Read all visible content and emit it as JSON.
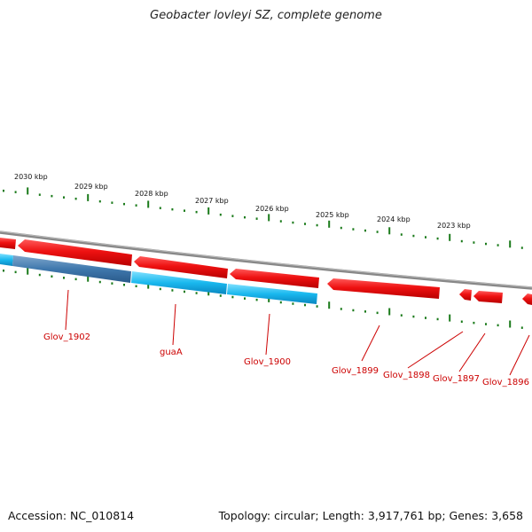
{
  "title": "Geobacter lovleyi SZ, complete genome",
  "footer": {
    "accession": "Accession: NC_010814",
    "summary": "Topology: circular; Length: 3,917,761 bp; Genes: 3,658"
  },
  "ruler": {
    "labels": [
      "2030 kbp",
      "2029 kbp",
      "2028 kbp",
      "2027 kbp",
      "2026 kbp",
      "2025 kbp",
      "2024 kbp",
      "2023 kbp"
    ]
  },
  "genes": [
    {
      "name": "Glov_1902",
      "strand": "minus"
    },
    {
      "name": "guaA",
      "strand": "minus"
    },
    {
      "name": "Glov_1900",
      "strand": "minus"
    },
    {
      "name": "Glov_1899",
      "strand": "minus"
    },
    {
      "name": "Glov_1898",
      "strand": "minus"
    },
    {
      "name": "Glov_1897",
      "strand": "minus"
    },
    {
      "name": "Glov_1896",
      "strand": "minus"
    }
  ],
  "colors": {
    "gene_red": "#ee1111",
    "cds_cyan": "#19b8ee",
    "cds_dark": "#3f78ad",
    "backbone": "#888888",
    "tick_green": "#1a7a1a",
    "label_red": "#cc0000"
  }
}
